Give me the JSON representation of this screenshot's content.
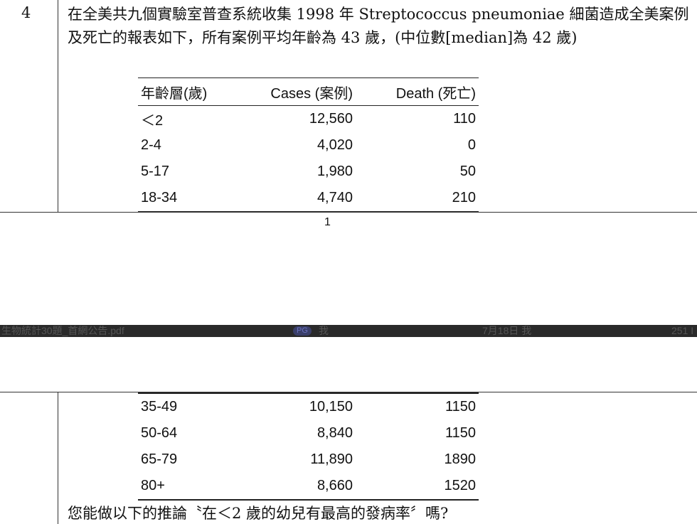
{
  "question": {
    "number": "4",
    "text": "在全美共九個實驗室普查系統收集 1998 年 Streptococcus pneumoniae 細菌造成全美案例及死亡的報表如下，所有案例平均年齡為 43 歲，(中位數[median]為 42 歲)",
    "closing": "您能做以下的推論〝在＜2 歲的幼兒有最高的發病率〞嗎?"
  },
  "table": {
    "headers": [
      "年齡層(歲)",
      "Cases (案例)",
      "Death (死亡)"
    ],
    "rows_page1": [
      [
        "＜2",
        "12,560",
        "110"
      ],
      [
        "2-4",
        "4,020",
        "0"
      ],
      [
        "5-17",
        "1,980",
        "50"
      ],
      [
        "18-34",
        "4,740",
        "210"
      ]
    ],
    "rows_page2": [
      [
        "35-49",
        "10,150",
        "1150"
      ],
      [
        "50-64",
        "8,840",
        "1150"
      ],
      [
        "65-79",
        "11,890",
        "1890"
      ],
      [
        "80+",
        "8,660",
        "1520"
      ]
    ]
  },
  "page_number": "1",
  "status_bar": {
    "filename": "生物統計30題_首網公告.pdf",
    "badge": "PG",
    "owner": "我",
    "modified": "7月18日 我",
    "size": "251 I"
  }
}
